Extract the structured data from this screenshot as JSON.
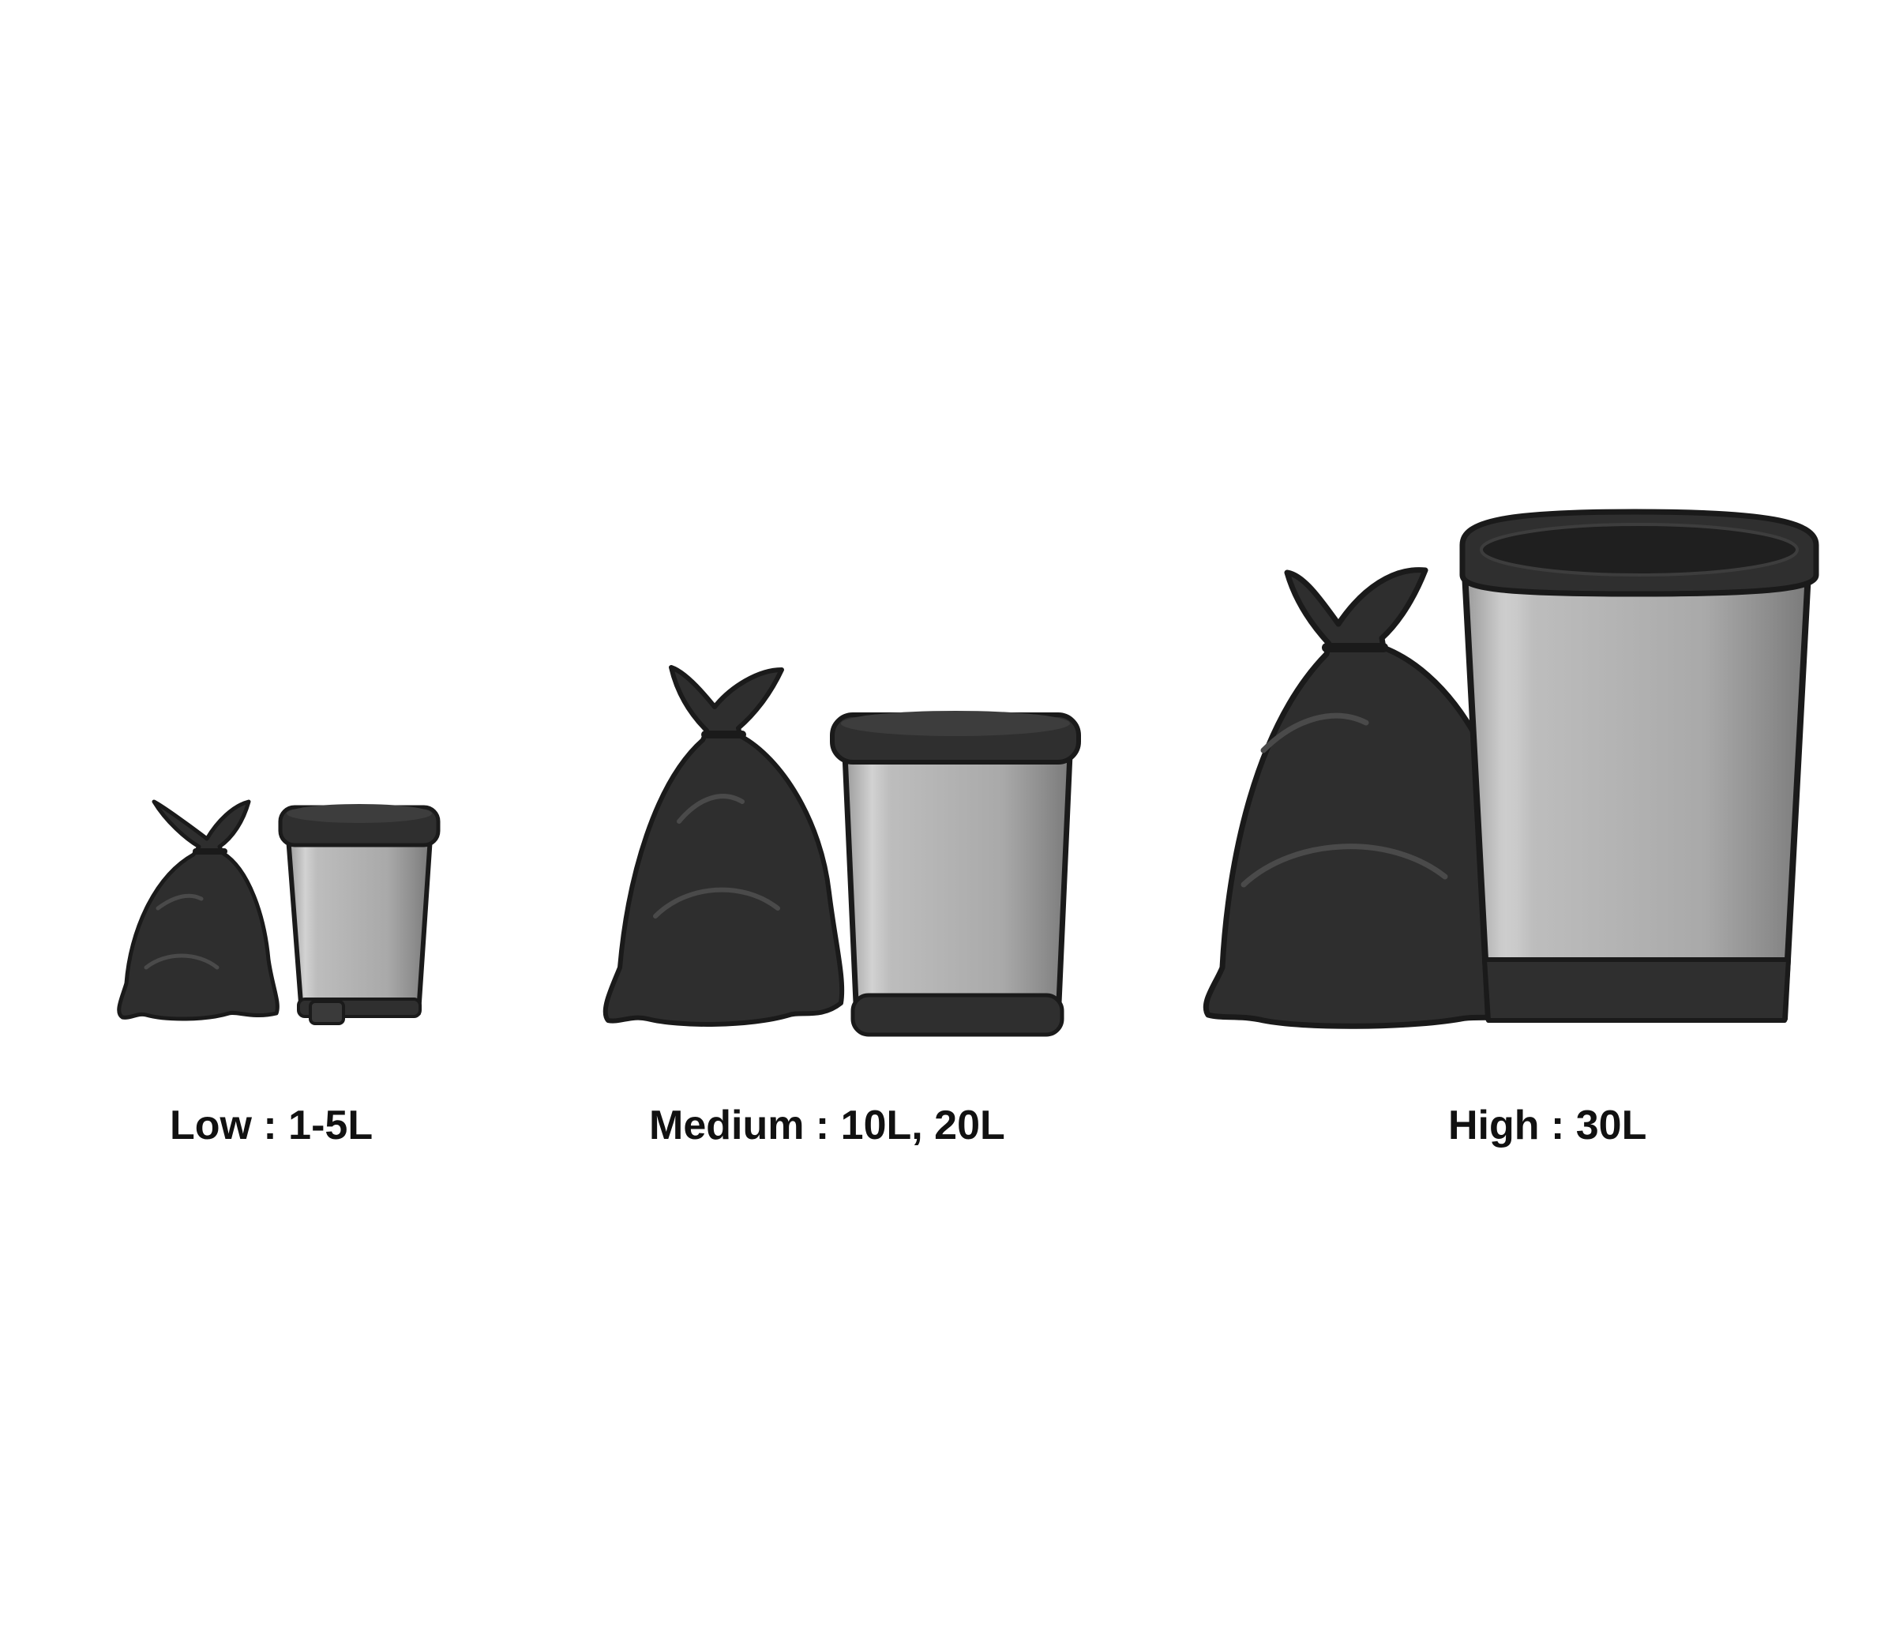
{
  "labels": {
    "low": "Low : 1-5L",
    "medium": "Medium : 10L, 20L",
    "high": "High : 30L"
  },
  "icons": {
    "low": [
      "garbage-bag-icon",
      "pedal-bin-icon"
    ],
    "medium": [
      "garbage-bag-icon",
      "lidded-bin-icon"
    ],
    "high": [
      "garbage-bag-icon",
      "open-bin-icon"
    ]
  },
  "colors": {
    "bag": "#2e2e2e",
    "bag_highlight": "#4a4a4a",
    "outline": "#1a1a1a",
    "bin_body": "#b0b0b0",
    "bin_body_dark": "#8c8c8c",
    "bin_body_light": "#d0d0d0",
    "rim": "#2f2f2f",
    "text": "#111111"
  }
}
